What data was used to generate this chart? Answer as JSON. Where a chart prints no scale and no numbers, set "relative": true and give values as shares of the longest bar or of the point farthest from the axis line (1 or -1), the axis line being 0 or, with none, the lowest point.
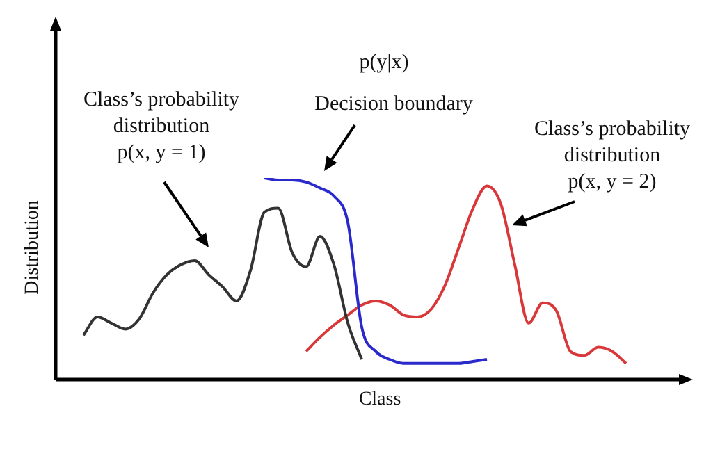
{
  "chart_data": {
    "type": "line",
    "relative": true,
    "xlabel": "Class",
    "ylabel": "Distribution",
    "legend": false,
    "marker": "none",
    "categories": [
      null,
      null,
      null,
      null,
      null,
      null,
      null,
      null,
      null,
      null,
      null,
      null,
      null,
      null,
      null,
      null,
      null,
      null,
      null,
      null,
      null,
      null,
      null,
      null,
      null,
      null,
      null,
      null,
      null,
      null,
      null,
      null,
      null,
      null,
      null,
      null,
      null,
      null,
      null,
      null
    ],
    "series": [
      {
        "color": "#333333",
        "values": [
          0.22,
          0.31,
          0.28,
          0.25,
          0.3,
          0.43,
          0.52,
          0.57,
          0.59,
          0.52,
          0.46,
          0.39,
          0.54,
          0.83,
          0.85,
          0.63,
          0.56,
          0.71,
          0.57,
          0.28,
          0.1,
          null,
          null,
          null,
          null,
          null,
          null,
          null,
          null,
          null,
          null,
          null,
          null,
          null,
          null,
          null,
          null,
          null,
          null,
          null
        ]
      },
      {
        "color": "#2a2acc",
        "values": [
          null,
          null,
          null,
          null,
          null,
          null,
          null,
          null,
          null,
          null,
          null,
          null,
          null,
          1.0,
          0.99,
          0.99,
          0.98,
          0.95,
          0.91,
          0.78,
          0.26,
          0.14,
          0.1,
          0.08,
          0.08,
          0.08,
          0.08,
          0.08,
          0.09,
          0.1,
          null,
          null,
          null,
          null,
          null,
          null,
          null,
          null,
          null,
          null
        ]
      },
      {
        "color": "#d9383a",
        "values": [
          null,
          null,
          null,
          null,
          null,
          null,
          null,
          null,
          null,
          null,
          null,
          null,
          null,
          null,
          null,
          null,
          0.14,
          0.21,
          0.27,
          0.32,
          0.37,
          0.39,
          0.37,
          0.32,
          0.31,
          0.35,
          0.47,
          0.66,
          0.85,
          0.96,
          0.87,
          0.57,
          0.28,
          0.38,
          0.34,
          0.14,
          0.12,
          0.16,
          0.14,
          0.08
        ]
      }
    ],
    "annotations": [
      "p(y|x)",
      "Decision boundary",
      "Class’s probability\ndistribution\np(x, y = 1)",
      "Class’s probability\ndistribution\np(x, y = 2)"
    ]
  }
}
